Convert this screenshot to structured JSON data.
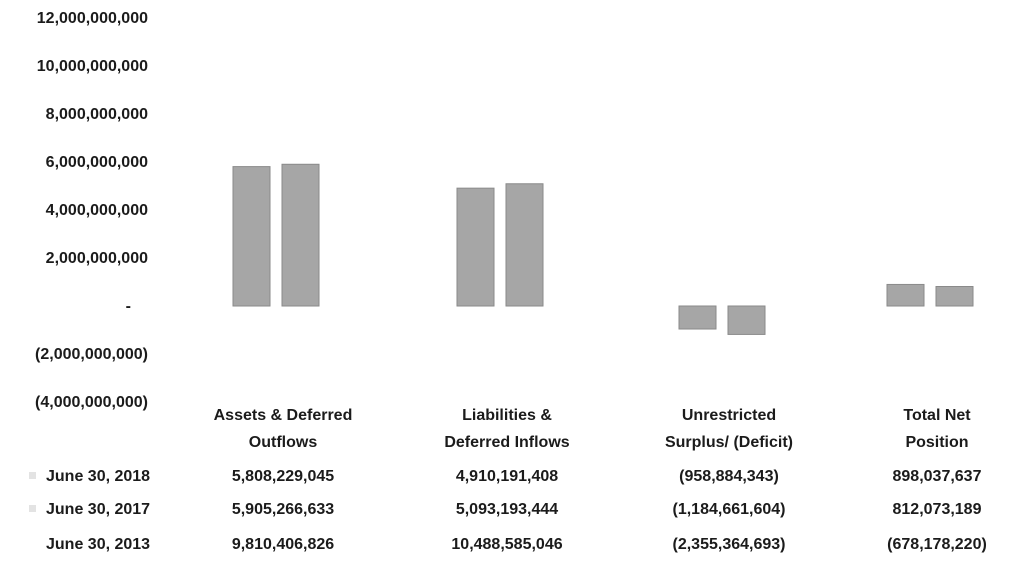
{
  "chart_data": {
    "type": "bar",
    "categories": [
      [
        "Assets & Deferred",
        "Outflows"
      ],
      [
        "Liabilities &",
        "Deferred Inflows"
      ],
      [
        "Unrestricted",
        "Surplus/    (Deficit)"
      ],
      [
        "Total Net",
        "Position"
      ]
    ],
    "series": [
      {
        "name": "June 30, 2018",
        "values": [
          5808229045,
          4910191408,
          -958884343,
          898037637
        ],
        "labels": [
          "5,808,229,045",
          "4,910,191,408",
          "(958,884,343)",
          "898,037,637"
        ],
        "color": "#a6a6a6",
        "drawn": true
      },
      {
        "name": "June 30, 2017",
        "values": [
          5905266633,
          5093193444,
          -1184661604,
          812073189
        ],
        "labels": [
          "5,905,266,633",
          "5,093,193,444",
          "(1,184,661,604)",
          "812,073,189"
        ],
        "color": "#a6a6a6",
        "drawn": true
      },
      {
        "name": "June 30, 2013",
        "values": [
          9810406826,
          10488585046,
          -2355364693,
          -678178220
        ],
        "labels": [
          "9,810,406,826",
          "10,488,585,046",
          "(2,355,364,693)",
          "(678,178,220)"
        ],
        "color": "#ffffff",
        "drawn": false
      }
    ],
    "yticks": [
      12000000000,
      10000000000,
      8000000000,
      6000000000,
      4000000000,
      2000000000,
      0,
      -2000000000,
      -4000000000
    ],
    "ytick_labels": [
      "12,000,000,000",
      "10,000,000,000",
      "8,000,000,000",
      "6,000,000,000",
      "4,000,000,000",
      "2,000,000,000",
      "-",
      "(2,000,000,000)",
      "(4,000,000,000)"
    ],
    "ylim": [
      -4000000000,
      12000000000
    ],
    "grid": false,
    "legend": "data-table"
  }
}
